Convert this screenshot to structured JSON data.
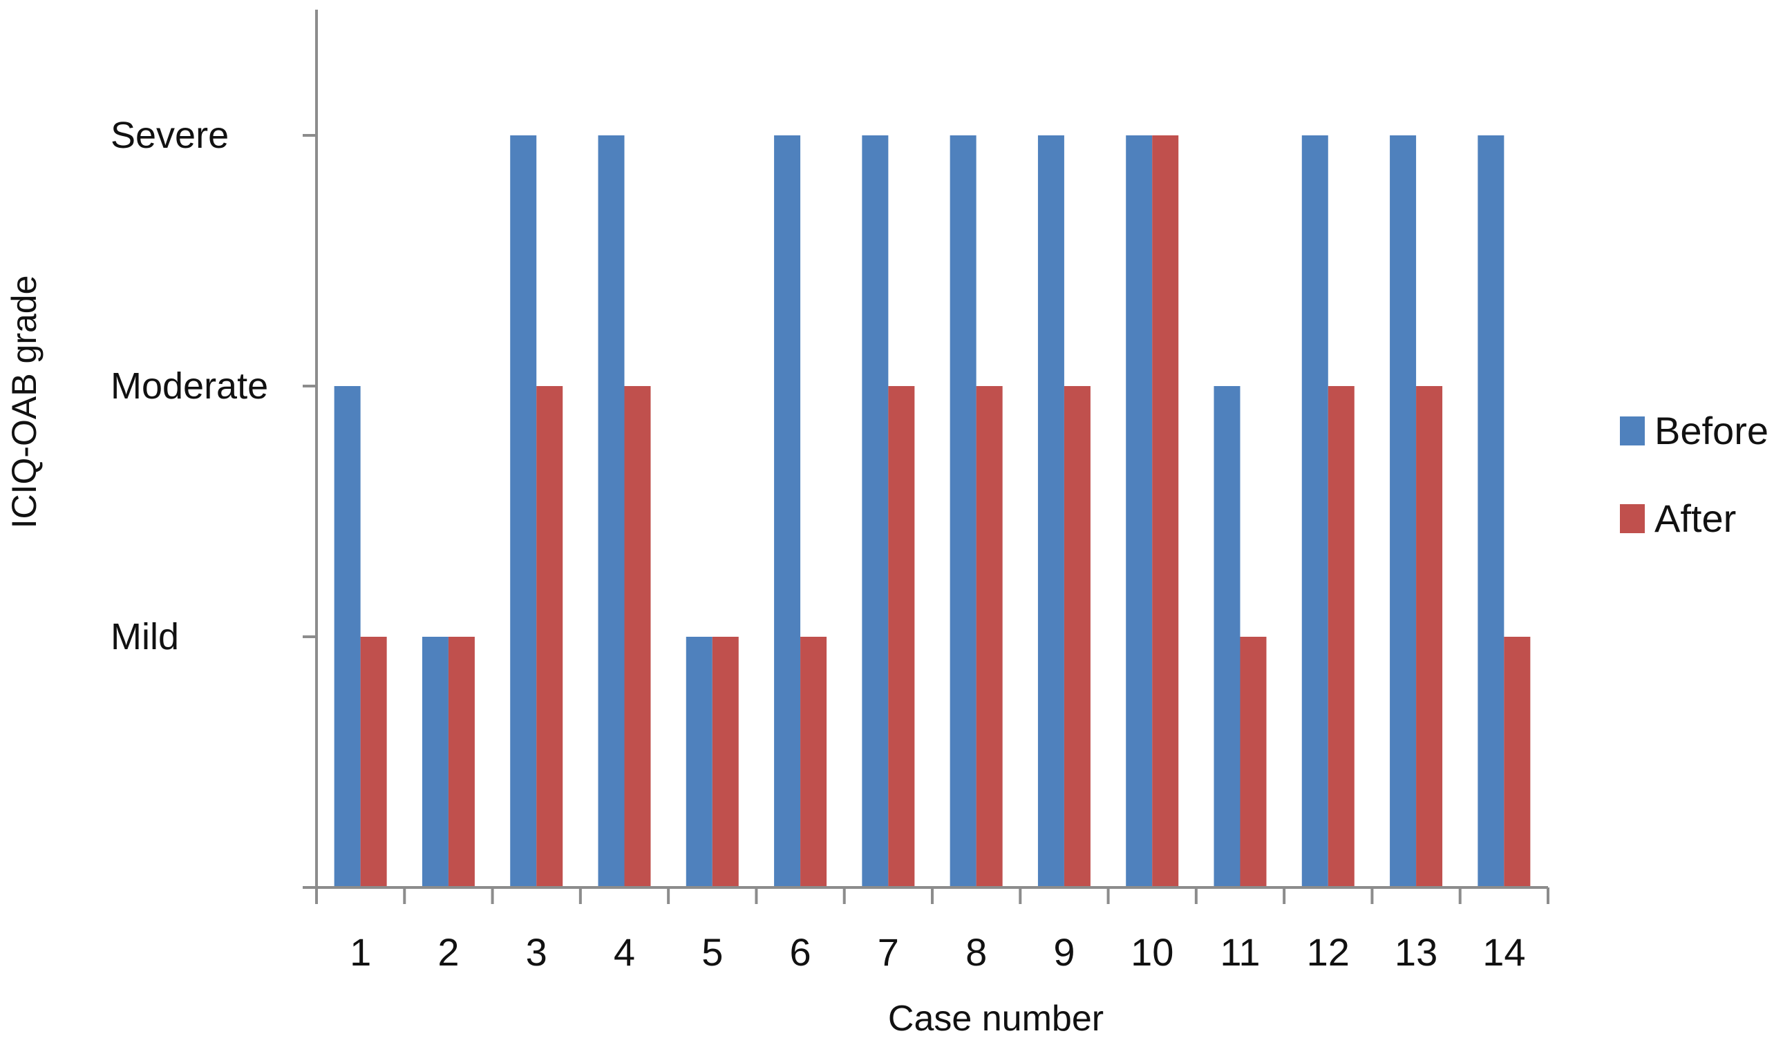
{
  "chart_data": {
    "type": "bar",
    "title": "",
    "xlabel": "Case number",
    "ylabel": "ICIQ-OAB grade",
    "categories": [
      "1",
      "2",
      "3",
      "4",
      "5",
      "6",
      "7",
      "8",
      "9",
      "10",
      "11",
      "12",
      "13",
      "14"
    ],
    "y_levels": [
      "Mild",
      "Moderate",
      "Severe"
    ],
    "ylim": [
      0,
      3
    ],
    "grid": false,
    "legend_position": "right",
    "series": [
      {
        "name": "Before",
        "color": "#4f81bd",
        "values": [
          2,
          1,
          3,
          3,
          1,
          3,
          3,
          3,
          3,
          3,
          2,
          3,
          3,
          3
        ]
      },
      {
        "name": "After",
        "color": "#c0504d",
        "values": [
          1,
          1,
          2,
          2,
          1,
          1,
          2,
          2,
          2,
          3,
          1,
          2,
          2,
          1
        ]
      }
    ]
  }
}
